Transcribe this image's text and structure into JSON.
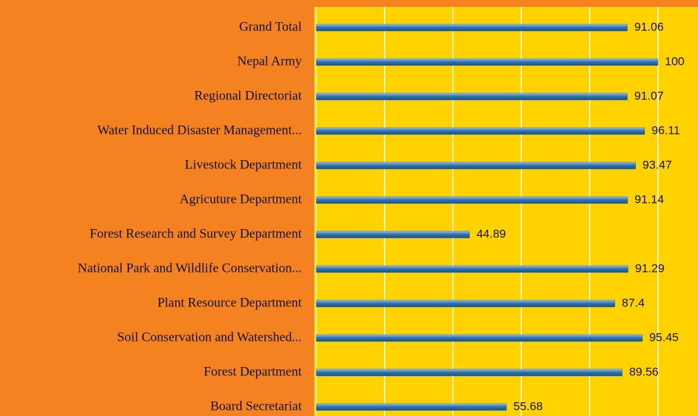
{
  "chart_data": {
    "type": "bar",
    "orientation": "horizontal",
    "categories": [
      "Grand Total",
      "Nepal Army",
      "Regional Directoriat",
      "Water Induced Disaster Management...",
      "Livestock Department",
      "Agricuture Department",
      "Forest Research and Survey Department",
      "National Park and Wildlife Conservation...",
      "Plant Resource Department",
      "Soil Conservation and Watershed...",
      "Forest Department",
      "Board Secretariat"
    ],
    "values": [
      91.06,
      100,
      91.07,
      96.11,
      93.47,
      91.14,
      44.89,
      91.29,
      87.4,
      95.45,
      89.56,
      55.68
    ],
    "color": "#2e75b6",
    "xlim": [
      0,
      120
    ],
    "xticks": [
      0,
      20,
      40,
      60,
      80,
      100,
      120
    ],
    "grid": true
  }
}
